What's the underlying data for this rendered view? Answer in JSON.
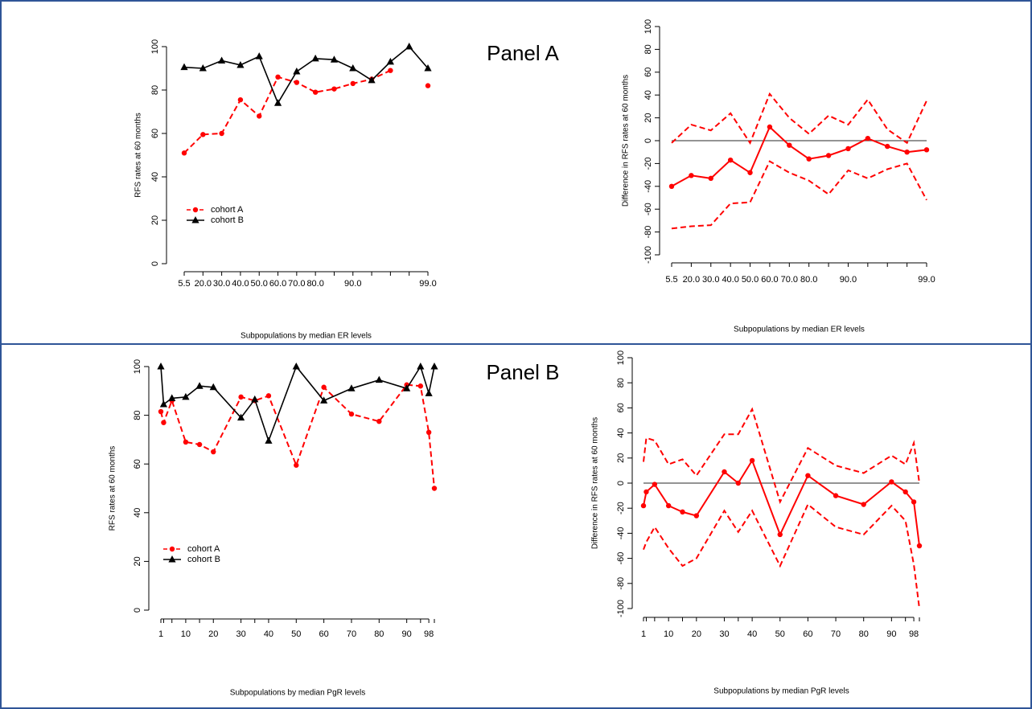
{
  "chart_data": [
    {
      "type": "line",
      "annotation": "Panel A",
      "x_label": "Subpopulations by median ER levels",
      "y_label": "RFS rates at 60 months",
      "categories": [
        "5.5",
        "20.0",
        "30.0",
        "40.0",
        "50.0",
        "60.0",
        "70.0",
        "80.0",
        null,
        "90.0",
        null,
        null,
        null,
        "99.0"
      ],
      "ylim": [
        0,
        100
      ],
      "yticks": [
        0,
        20,
        40,
        60,
        80,
        100
      ],
      "series": [
        {
          "name": "cohort A",
          "color": "#ff0000",
          "dashed": true,
          "marker": "circle",
          "values": [
            51,
            59.5,
            60,
            75.5,
            68,
            86,
            83.5,
            79,
            80.5,
            83,
            85,
            89,
            null,
            82
          ]
        },
        {
          "name": "cohort B",
          "color": "#000000",
          "dashed": false,
          "marker": "triangle",
          "values": [
            90.5,
            90,
            93.5,
            91.5,
            95.5,
            74,
            88.5,
            94.5,
            94,
            90,
            84.5,
            93,
            100,
            90
          ]
        }
      ],
      "legend": "lower left"
    },
    {
      "type": "line",
      "x_label": "Subpopulations by median ER levels",
      "y_label": "Difference in RFS rates at 60 months",
      "categories": [
        "5.5",
        "20.0",
        "30.0",
        "40.0",
        "50.0",
        "60.0",
        "70.0",
        "80.0",
        null,
        "90.0",
        null,
        null,
        null,
        "99.0"
      ],
      "ylim": [
        -100,
        100
      ],
      "yticks": [
        -100,
        -80,
        -60,
        -40,
        -20,
        0,
        20,
        40,
        60,
        80,
        100
      ],
      "hline": 0,
      "series": [
        {
          "color": "#ff0000",
          "dashed": true,
          "marker": null,
          "values": [
            -2,
            14,
            9,
            24,
            -2,
            41,
            20,
            6,
            22,
            14,
            36,
            10,
            -2,
            35
          ]
        },
        {
          "color": "#ff0000",
          "dashed": false,
          "marker": "circle",
          "values": [
            -40,
            -30.5,
            -33,
            -17,
            -28,
            12,
            -4,
            -16,
            -13,
            -7,
            2,
            -5,
            -10,
            -8
          ]
        },
        {
          "color": "#ff0000",
          "dashed": true,
          "marker": null,
          "values": [
            -77,
            -75,
            -74,
            -55,
            -54,
            -18,
            -28,
            -35,
            -47,
            -26,
            -33,
            -25,
            -20,
            -52
          ]
        }
      ]
    },
    {
      "type": "line",
      "annotation": "Panel B",
      "x_label": "Subpopulations by median PgR levels",
      "y_label": "RFS rates at 60 months",
      "x": [
        1,
        2,
        5,
        10,
        15,
        20,
        30,
        35,
        40,
        50,
        60,
        70,
        80,
        90,
        95,
        98,
        100
      ],
      "xlim": [
        1,
        100
      ],
      "xticks": [
        1,
        10,
        20,
        30,
        40,
        50,
        60,
        70,
        80,
        90,
        98
      ],
      "ylim": [
        0,
        100
      ],
      "yticks": [
        0,
        20,
        40,
        60,
        80,
        100
      ],
      "series": [
        {
          "name": "cohort A",
          "color": "#ff0000",
          "dashed": true,
          "marker": "circle",
          "values": [
            81.5,
            77,
            86,
            69,
            68,
            65,
            87.5,
            86,
            88,
            59.5,
            91.5,
            80.5,
            77.5,
            92.5,
            92,
            73,
            50
          ]
        },
        {
          "name": "cohort B",
          "color": "#000000",
          "dashed": false,
          "marker": "triangle",
          "values": [
            100,
            84.5,
            87,
            87.5,
            92,
            91.5,
            79,
            86.5,
            69.5,
            100,
            86,
            91,
            94.5,
            91,
            100,
            89,
            100
          ]
        }
      ],
      "legend": "lower left"
    },
    {
      "type": "line",
      "x_label": "Subpopulations by median PgR levels",
      "y_label": "Difference in RFS rates at 60 months",
      "x": [
        1,
        2,
        5,
        10,
        15,
        20,
        30,
        35,
        40,
        50,
        60,
        70,
        80,
        90,
        95,
        98,
        100
      ],
      "xlim": [
        1,
        100
      ],
      "xticks": [
        1,
        10,
        20,
        30,
        40,
        50,
        60,
        70,
        80,
        90,
        98
      ],
      "ylim": [
        -100,
        100
      ],
      "yticks": [
        -100,
        -80,
        -60,
        -40,
        -20,
        0,
        20,
        40,
        60,
        80,
        100
      ],
      "hline": 0,
      "series": [
        {
          "color": "#ff0000",
          "dashed": true,
          "marker": null,
          "values": [
            17,
            36,
            34,
            15,
            19,
            6,
            39,
            39,
            59,
            -15,
            28,
            14,
            8,
            22,
            15,
            32,
            0
          ]
        },
        {
          "color": "#ff0000",
          "dashed": false,
          "marker": "circle",
          "values": [
            -18,
            -7,
            -1,
            -18,
            -23,
            -26,
            9,
            0,
            18,
            -41,
            6,
            -10,
            -17,
            1,
            -7,
            -15,
            -50
          ]
        },
        {
          "color": "#ff0000",
          "dashed": true,
          "marker": null,
          "values": [
            -53,
            -47,
            -35,
            -52,
            -66,
            -60,
            -22,
            -39,
            -22,
            -66,
            -17,
            -35,
            -41,
            -18,
            -30,
            -65,
            -100
          ]
        }
      ]
    }
  ]
}
